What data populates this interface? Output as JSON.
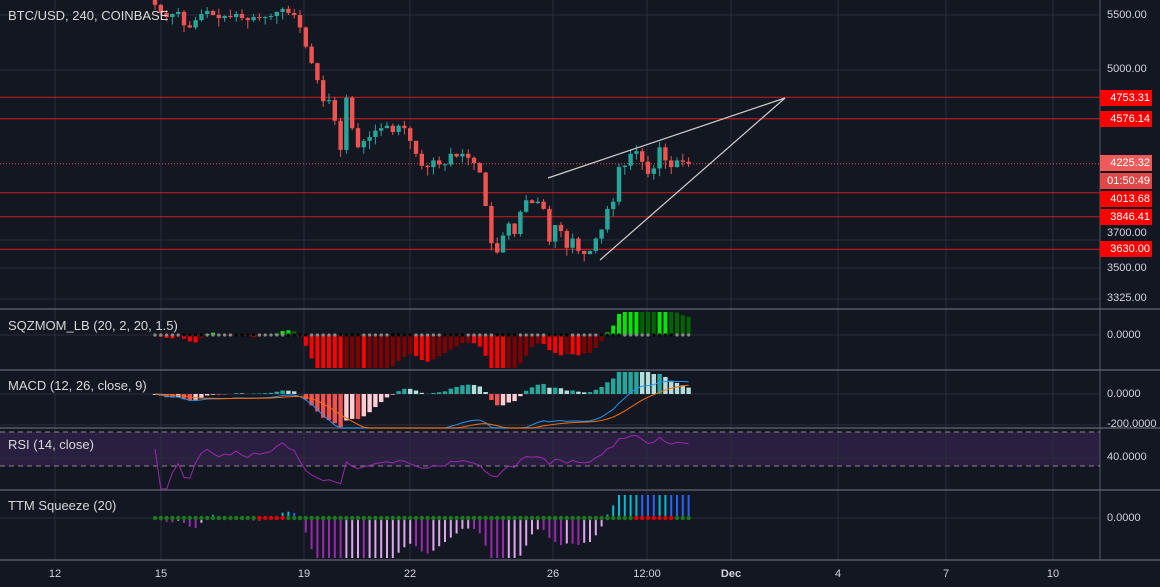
{
  "header": {
    "title": "BTC/USD, 240, COINBASE"
  },
  "price_axis": {
    "ticks": [
      "5500.00",
      "5000.00",
      "3700.00",
      "3500.00",
      "3325.00"
    ],
    "last_price": "4225.32",
    "countdown": "01:50:49",
    "levels": [
      "4753.31",
      "4576.14",
      "4013.68",
      "3846.41",
      "3630.00"
    ]
  },
  "indicators": {
    "sqz": {
      "label": "SQZMOM_LB (20, 2, 20, 1.5)",
      "axis": "0.0000"
    },
    "macd": {
      "label": "MACD (12, 26, close, 9)",
      "axis_zero": "0.0000",
      "axis_low": "-200.0000"
    },
    "rsi": {
      "label": "RSI (14, close)",
      "axis": "40.0000"
    },
    "ttm": {
      "label": "TTM Squeeze (20)",
      "axis": "0.0000"
    }
  },
  "time_axis": {
    "labels": [
      "12",
      "15",
      "19",
      "22",
      "26",
      "12:00",
      "Dec",
      "4",
      "7",
      "10"
    ]
  },
  "colors": {
    "background": "#131722",
    "up": "#26a69a",
    "down": "#ef5350",
    "level": "#ff0000",
    "trendline": "#d0d0d0",
    "rsi": "#9c27b0",
    "macd": "#2196f3",
    "signal": "#ff6d00"
  },
  "chart_data": {
    "type": "candlestick",
    "title": "BTC/USD, 240, COINBASE",
    "scale": "log",
    "ylim": [
      3325,
      5650
    ],
    "closes": [
      5600,
      5520,
      5480,
      5510,
      5530,
      5400,
      5380,
      5450,
      5510,
      5540,
      5500,
      5470,
      5490,
      5480,
      5510,
      5470,
      5450,
      5480,
      5470,
      5480,
      5490,
      5530,
      5560,
      5520,
      5500,
      5380,
      5200,
      5050,
      4900,
      4720,
      4730,
      4560,
      4330,
      4750,
      4500,
      4350,
      4400,
      4430,
      4480,
      4500,
      4520,
      4470,
      4520,
      4500,
      4400,
      4300,
      4210,
      4200,
      4250,
      4220,
      4220,
      4300,
      4280,
      4300,
      4270,
      4230,
      4160,
      3920,
      3670,
      3610,
      3720,
      3800,
      3730,
      3880,
      3960,
      3940,
      3950,
      3900,
      3680,
      3790,
      3750,
      3640,
      3700,
      3620,
      3600,
      3620,
      3700,
      3760,
      3900,
      3950,
      4200,
      4210,
      4300,
      4320,
      4240,
      4150,
      4190,
      4350,
      4250,
      4200,
      4250,
      4240,
      4225.32
    ],
    "horizontal_levels": [
      4753.31,
      4576.14,
      4013.68,
      3846.41,
      3630.0
    ],
    "last_price": 4225.32,
    "grid": true
  }
}
